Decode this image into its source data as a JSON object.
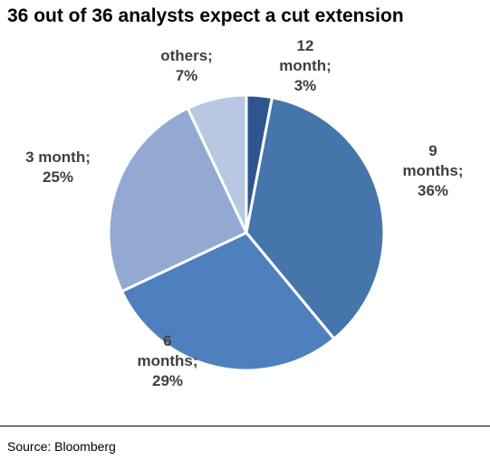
{
  "title": "36 out of 36 analysts expect a cut extension",
  "source": "Source: Bloomberg",
  "chart_data": {
    "type": "pie",
    "title": "36 out of 36 analysts expect a cut extension",
    "slices": [
      {
        "label_lines": [
          "12",
          "month;",
          "3%"
        ],
        "value": 3,
        "color": "#2f5590"
      },
      {
        "label_lines": [
          "9",
          "months;",
          "36%"
        ],
        "value": 36,
        "color": "#4575aa"
      },
      {
        "label_lines": [
          "6",
          "months;",
          "29%"
        ],
        "value": 29,
        "color": "#4f80be"
      },
      {
        "label_lines": [
          "3 month;",
          "25%"
        ],
        "value": 25,
        "color": "#93a9d2"
      },
      {
        "label_lines": [
          "others;",
          "7%"
        ],
        "value": 7,
        "color": "#b8c7e2"
      }
    ],
    "legend": "none"
  }
}
